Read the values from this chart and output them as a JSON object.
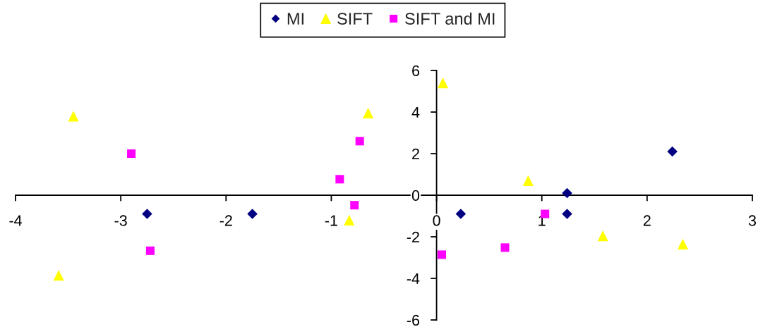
{
  "chart_data": {
    "type": "scatter",
    "series": [
      {
        "name": "MI",
        "color": "#000080",
        "marker": "diamond",
        "x": [
          -2.75,
          -1.75,
          0.23,
          1.24,
          1.24,
          2.24
        ],
        "values": [
          -0.9,
          -0.9,
          -0.9,
          0.1,
          -0.9,
          2.1
        ]
      },
      {
        "name": "SIFT",
        "color": "#ffff00",
        "marker": "triangle",
        "x": [
          -3.45,
          -3.59,
          -0.65,
          -0.83,
          0.06,
          0.87,
          1.58,
          2.34
        ],
        "values": [
          3.8,
          -3.85,
          3.95,
          -1.2,
          5.4,
          0.7,
          -1.95,
          -2.35
        ]
      },
      {
        "name": "SIFT and MI",
        "color": "#ff00ff",
        "marker": "square",
        "x": [
          -2.9,
          -2.72,
          -0.73,
          -0.92,
          -0.78,
          0.05,
          0.65,
          1.03
        ],
        "values": [
          2.0,
          -2.67,
          2.6,
          0.77,
          -0.48,
          -2.86,
          -2.52,
          -0.9
        ]
      }
    ],
    "xlim": [
      -4,
      3
    ],
    "xticks": [
      -4,
      -3,
      -2,
      -1,
      0,
      1,
      2,
      3
    ],
    "ylim": [
      -6,
      6
    ],
    "yticks": [
      -6,
      -4,
      -2,
      0,
      2,
      4,
      6
    ],
    "grid": false,
    "legend": "top"
  }
}
